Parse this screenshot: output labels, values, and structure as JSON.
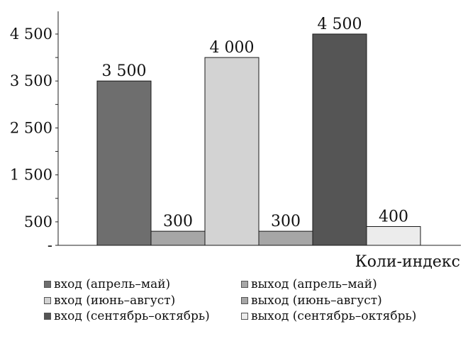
{
  "chart_data": {
    "type": "bar",
    "title": "",
    "xlabel": "Коли-индекс",
    "ylabel": "",
    "ylim": [
      0,
      5000
    ],
    "yticks": [
      {
        "value": 0,
        "label": "-"
      },
      {
        "value": 500,
        "label": "500"
      },
      {
        "value": 1500,
        "label": "1 500"
      },
      {
        "value": 2500,
        "label": "2 500"
      },
      {
        "value": 3500,
        "label": "3 500"
      },
      {
        "value": 4500,
        "label": "4 500"
      }
    ],
    "grid": false,
    "legend_position": "bottom",
    "series": [
      {
        "name": "вход (апрель–май)",
        "value": 3500,
        "label": "3 500",
        "color": "#6e6e6e"
      },
      {
        "name": "выход (апрель–май)",
        "value": 300,
        "label": "300",
        "color": "#a6a6a6"
      },
      {
        "name": "вход (июнь–август)",
        "value": 4000,
        "label": "4 000",
        "color": "#d3d3d3"
      },
      {
        "name": "выход (июнь–август)",
        "value": 300,
        "label": "300",
        "color": "#a6a6a6"
      },
      {
        "name": "вход (сентябрь–октябрь)",
        "value": 4500,
        "label": "4 500",
        "color": "#555555"
      },
      {
        "name": "выход (сентябрь–октябрь)",
        "value": 400,
        "label": "400",
        "color": "#ececec"
      }
    ]
  },
  "legend_rows": [
    [
      0,
      1
    ],
    [
      2,
      3
    ],
    [
      4,
      5
    ]
  ]
}
